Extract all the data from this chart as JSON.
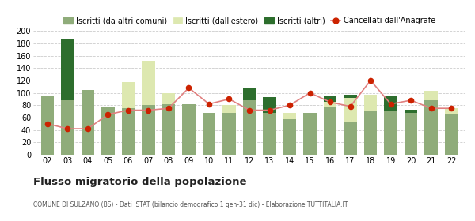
{
  "years": [
    "02",
    "03",
    "04",
    "05",
    "06",
    "07",
    "08",
    "09",
    "10",
    "11",
    "12",
    "13",
    "14",
    "15",
    "16",
    "17",
    "18",
    "19",
    "20",
    "21",
    "22"
  ],
  "iscritti_comuni": [
    95,
    88,
    105,
    78,
    75,
    80,
    82,
    82,
    68,
    68,
    88,
    68,
    58,
    68,
    78,
    52,
    72,
    72,
    68,
    88,
    65
  ],
  "iscritti_estero": [
    0,
    0,
    0,
    0,
    42,
    72,
    18,
    0,
    0,
    12,
    0,
    0,
    10,
    0,
    8,
    40,
    25,
    0,
    0,
    15,
    10
  ],
  "iscritti_altri": [
    0,
    98,
    0,
    0,
    0,
    0,
    0,
    0,
    0,
    0,
    20,
    25,
    0,
    0,
    8,
    5,
    0,
    22,
    5,
    0,
    0
  ],
  "cancellati": [
    50,
    42,
    42,
    65,
    72,
    72,
    75,
    108,
    82,
    90,
    72,
    72,
    80,
    100,
    85,
    78,
    120,
    82,
    88,
    75,
    75
  ],
  "ylim": [
    0,
    200
  ],
  "yticks": [
    0,
    20,
    40,
    60,
    80,
    100,
    120,
    140,
    160,
    180,
    200
  ],
  "color_comuni": "#8fac7a",
  "color_estero": "#dde8b0",
  "color_altri": "#2d6e2d",
  "color_cancellati": "#cc2200",
  "color_cancellati_line": "#e08080",
  "bg_color": "#ffffff",
  "grid_color": "#cccccc",
  "title": "Flusso migratorio della popolazione",
  "subtitle": "COMUNE DI SULZANO (BS) - Dati ISTAT (bilancio demografico 1 gen-31 dic) - Elaborazione TUTTITALIA.IT",
  "legend_labels": [
    "Iscritti (da altri comuni)",
    "Iscritti (dall'estero)",
    "Iscritti (altri)",
    "Cancellati dall'Anagrafe"
  ]
}
